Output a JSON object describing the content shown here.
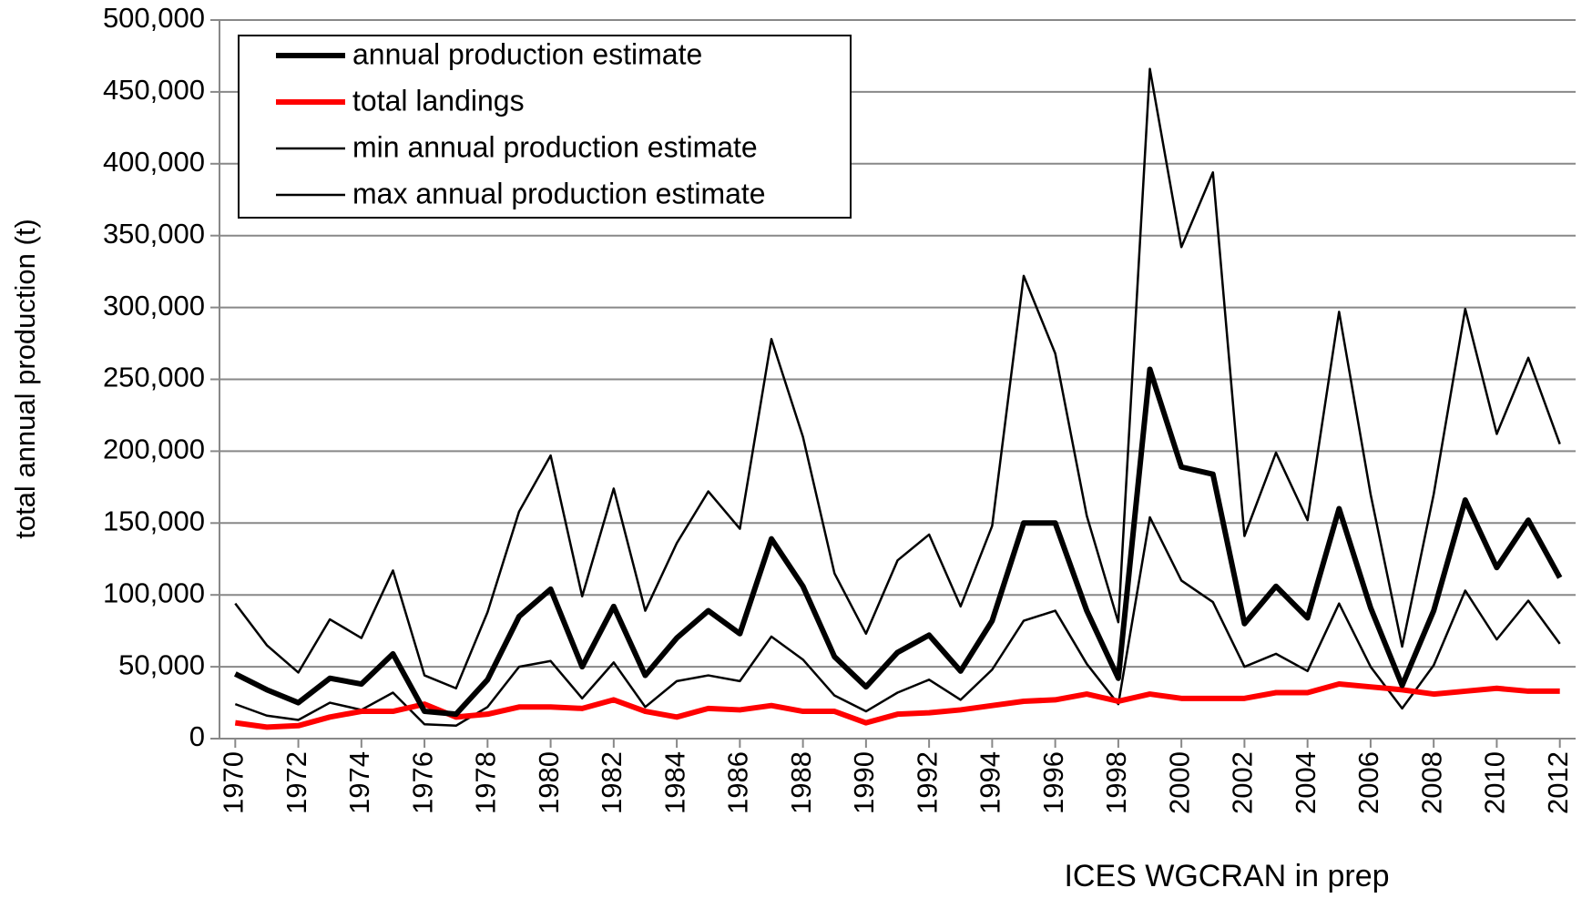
{
  "chart_data": {
    "type": "line",
    "ylabel": "total annual production (t)",
    "annotation": "ICES WGCRAN in prep",
    "x": [
      1970,
      1971,
      1972,
      1973,
      1974,
      1975,
      1976,
      1977,
      1978,
      1979,
      1980,
      1981,
      1982,
      1983,
      1984,
      1985,
      1986,
      1987,
      1988,
      1989,
      1990,
      1991,
      1992,
      1993,
      1994,
      1995,
      1996,
      1997,
      1998,
      1999,
      2000,
      2001,
      2002,
      2003,
      2004,
      2005,
      2006,
      2007,
      2008,
      2009,
      2010,
      2011,
      2012
    ],
    "xlim": [
      1969.5,
      2012.5
    ],
    "xticks": [
      1970,
      1972,
      1974,
      1976,
      1978,
      1980,
      1982,
      1984,
      1986,
      1988,
      1990,
      1992,
      1994,
      1996,
      1998,
      2000,
      2002,
      2004,
      2006,
      2008,
      2010,
      2012
    ],
    "ylim": [
      0,
      500000
    ],
    "yticks": [
      0,
      {
        "value": 50000,
        "label": "50,000"
      },
      {
        "value": 100000,
        "label": "100,000"
      },
      {
        "value": 150000,
        "label": "150,000"
      },
      {
        "value": 200000,
        "label": "200,000"
      },
      {
        "value": 250000,
        "label": "250,000"
      },
      {
        "value": 300000,
        "label": "300,000"
      },
      {
        "value": 350000,
        "label": "350,000"
      },
      {
        "value": 400000,
        "label": "400,000"
      },
      {
        "value": 450000,
        "label": "450,000"
      },
      {
        "value": 500000,
        "label": "500,000"
      }
    ],
    "grid": true,
    "legend": "upper left",
    "series": [
      {
        "name": "annual production estimate",
        "color": "#000000",
        "width": 6,
        "values": [
          45000,
          34000,
          25000,
          42000,
          38000,
          59000,
          19000,
          17000,
          41000,
          85000,
          104000,
          50000,
          92000,
          44000,
          70000,
          89000,
          73000,
          139000,
          106000,
          57000,
          36000,
          60000,
          72000,
          47000,
          82000,
          150000,
          150000,
          89000,
          42000,
          257000,
          189000,
          184000,
          80000,
          106000,
          84000,
          160000,
          91000,
          37000,
          89000,
          166000,
          119000,
          152000,
          112000
        ]
      },
      {
        "name": "total landings",
        "color": "#ff0000",
        "width": 6,
        "values": [
          11000,
          8000,
          9000,
          15000,
          19000,
          19000,
          24000,
          15000,
          17000,
          22000,
          22000,
          21000,
          27000,
          19000,
          15000,
          21000,
          20000,
          23000,
          19000,
          19000,
          11000,
          17000,
          18000,
          20000,
          23000,
          26000,
          27000,
          31000,
          26000,
          31000,
          28000,
          28000,
          28000,
          32000,
          32000,
          38000,
          36000,
          34000,
          31000,
          33000,
          35000,
          33000,
          33000
        ]
      },
      {
        "name": "min annual production estimate",
        "color": "#000000",
        "width": 2.5,
        "values": [
          24000,
          16000,
          13000,
          25000,
          20000,
          32000,
          10000,
          9000,
          22000,
          50000,
          54000,
          28000,
          53000,
          22000,
          40000,
          44000,
          40000,
          71000,
          55000,
          30000,
          19000,
          32000,
          41000,
          27000,
          48000,
          82000,
          89000,
          52000,
          24000,
          154000,
          110000,
          95000,
          50000,
          59000,
          47000,
          94000,
          50000,
          21000,
          51000,
          103000,
          69000,
          96000,
          66000
        ]
      },
      {
        "name": "max annual production estimate",
        "color": "#000000",
        "width": 2.5,
        "values": [
          94000,
          65000,
          46000,
          83000,
          70000,
          117000,
          44000,
          35000,
          88000,
          158000,
          197000,
          99000,
          174000,
          89000,
          136000,
          172000,
          146000,
          278000,
          210000,
          115000,
          73000,
          124000,
          142000,
          92000,
          148000,
          322000,
          268000,
          155000,
          81000,
          466000,
          342000,
          394000,
          141000,
          199000,
          152000,
          297000,
          170000,
          64000,
          170000,
          299000,
          212000,
          265000,
          205000
        ]
      }
    ]
  }
}
